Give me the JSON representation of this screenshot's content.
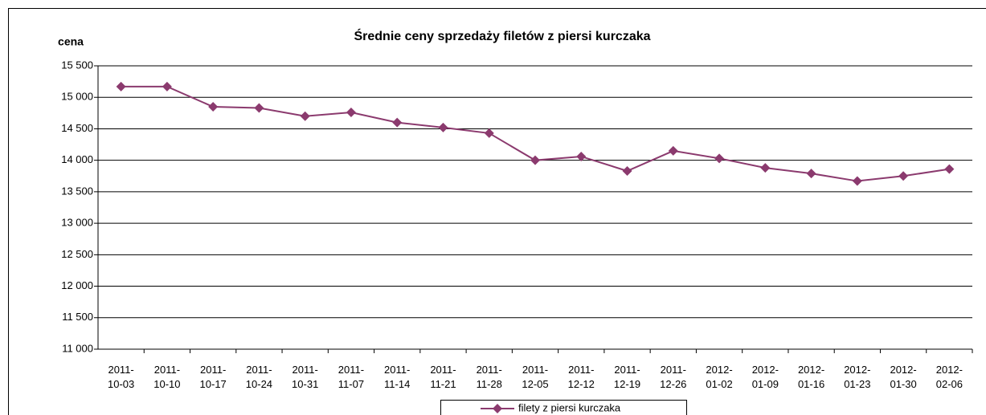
{
  "chart_data": {
    "type": "line",
    "title": "Średnie ceny sprzedaży filetów z piersi kurczaka",
    "y_label": "cena",
    "categories": [
      "2011-10-03",
      "2011-10-10",
      "2011-10-17",
      "2011-10-24",
      "2011-10-31",
      "2011-11-07",
      "2011-11-14",
      "2011-11-21",
      "2011-11-28",
      "2011-12-05",
      "2011-12-12",
      "2011-12-19",
      "2011-12-26",
      "2012-01-02",
      "2012-01-09",
      "2012-01-16",
      "2012-01-23",
      "2012-01-30",
      "2012-02-06"
    ],
    "series": [
      {
        "name": "filety z piersi kurczaka",
        "color": "#8b3a6e",
        "values": [
          15170,
          15170,
          14850,
          14830,
          14700,
          14760,
          14600,
          14520,
          14430,
          14000,
          14060,
          13830,
          14150,
          14030,
          13880,
          13790,
          13670,
          13750,
          13860
        ]
      }
    ],
    "ylim": [
      11000,
      15500
    ],
    "yticks": [
      {
        "value": 11000,
        "label": "11 000"
      },
      {
        "value": 11500,
        "label": "11 500"
      },
      {
        "value": 12000,
        "label": "12 000"
      },
      {
        "value": 12500,
        "label": "12 500"
      },
      {
        "value": 13000,
        "label": "13 000"
      },
      {
        "value": 13500,
        "label": "13 500"
      },
      {
        "value": 14000,
        "label": "14 000"
      },
      {
        "value": 14500,
        "label": "14 500"
      },
      {
        "value": 15000,
        "label": "15 000"
      },
      {
        "value": 15500,
        "label": "15 500"
      }
    ],
    "grid": true,
    "legend": "bottom"
  }
}
